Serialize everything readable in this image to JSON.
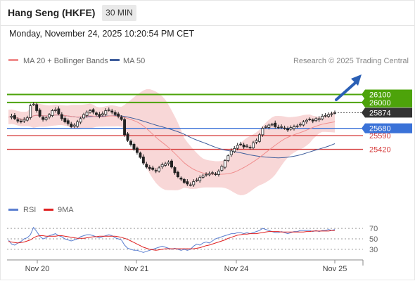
{
  "header": {
    "title": "Hang Seng (HKFE)",
    "timeframe": "30 MIN",
    "timestamp": "Monday, November 24, 2025 10:20:54 PM CET"
  },
  "legend": {
    "ma20_label": "MA 20 + Bollinger Bands",
    "ma50_label": "MA 50",
    "credit": "Research © 2025 Trading Central",
    "ma20_color": "#f08f8f",
    "ma50_color": "#3f5e9c"
  },
  "rsi_legend": {
    "rsi_label": "RSI",
    "ma_label": "9MA",
    "rsi_color": "#5b7fd0",
    "ma_color": "#e02020"
  },
  "chart_data": [
    {
      "type": "candlestick",
      "title": "Hang Seng (HKFE)",
      "ylim": [
        24850,
        26400
      ],
      "x_tick_labels": [
        "Nov 20",
        "Nov 21",
        "Nov 24",
        "Nov 25"
      ],
      "current_price": 25874,
      "levels": [
        {
          "label": "26100",
          "value": 26100,
          "kind": "resistance",
          "color": "#4da30a"
        },
        {
          "label": "26000",
          "value": 26000,
          "kind": "resistance",
          "color": "#4da30a"
        },
        {
          "label": "25874",
          "value": 25874,
          "kind": "last",
          "color": "#333333"
        },
        {
          "label": "25680",
          "value": 25680,
          "kind": "pivot",
          "color": "#3a72d8"
        },
        {
          "label": "25590",
          "value": 25590,
          "kind": "support",
          "color": "#d53a3a"
        },
        {
          "label": "25420",
          "value": 25420,
          "kind": "support",
          "color": "#d53a3a"
        }
      ],
      "close_path": [
        25820,
        25830,
        25800,
        25770,
        25760,
        25790,
        25810,
        25960,
        25980,
        25900,
        25830,
        25790,
        25810,
        25850,
        25900,
        25910,
        25860,
        25800,
        25760,
        25740,
        25700,
        25720,
        25760,
        25800,
        25850,
        25880,
        25900,
        25880,
        25850,
        25830,
        25860,
        25900,
        25910,
        25880,
        25850,
        25830,
        25790,
        25600,
        25530,
        25480,
        25420,
        25380,
        25320,
        25250,
        25200,
        25180,
        25170,
        25150,
        25190,
        25230,
        25240,
        25260,
        25200,
        25130,
        25080,
        25050,
        25010,
        24990,
        24980,
        25020,
        25040,
        25070,
        25090,
        25110,
        25120,
        25130,
        25110,
        25150,
        25210,
        25280,
        25340,
        25400,
        25430,
        25470,
        25480,
        25450,
        25460,
        25440,
        25500,
        25530,
        25600,
        25680,
        25700,
        25720,
        25730,
        25700,
        25690,
        25700,
        25680,
        25660,
        25690,
        25700,
        25710,
        25730,
        25760,
        25780,
        25790,
        25770,
        25800,
        25800,
        25830,
        25840,
        25850,
        25860,
        25874
      ]
    },
    {
      "type": "line",
      "title": "RSI",
      "ylim": [
        15,
        85
      ],
      "y_ticks": [
        30,
        50,
        70
      ],
      "series": [
        {
          "name": "RSI",
          "values": [
            48,
            40,
            38,
            42,
            45,
            50,
            52,
            58,
            72,
            64,
            55,
            50,
            52,
            56,
            58,
            60,
            56,
            54,
            50,
            48,
            46,
            48,
            50,
            54,
            56,
            58,
            58,
            56,
            54,
            52,
            54,
            56,
            58,
            56,
            52,
            50,
            48,
            38,
            32,
            30,
            28,
            28,
            26,
            24,
            26,
            28,
            30,
            32,
            34,
            36,
            34,
            32,
            30,
            32,
            30,
            28,
            30,
            28,
            30,
            36,
            40,
            38,
            42,
            44,
            42,
            46,
            50,
            52,
            54,
            56,
            58,
            60,
            60,
            62,
            62,
            60,
            62,
            60,
            62,
            64,
            66,
            70,
            68,
            66,
            64,
            62,
            62,
            64,
            62,
            60,
            62,
            64,
            64,
            66,
            66,
            66,
            66,
            64,
            66,
            64,
            66,
            66,
            68,
            66,
            68
          ]
        },
        {
          "name": "9MA",
          "values": [
            45,
            44,
            43,
            42,
            43,
            44,
            46,
            48,
            52,
            55,
            56,
            56,
            55,
            55,
            55,
            55,
            56,
            56,
            55,
            54,
            53,
            52,
            51,
            51,
            51,
            52,
            53,
            54,
            54,
            55,
            55,
            55,
            55,
            55,
            55,
            54,
            53,
            51,
            49,
            46,
            43,
            40,
            37,
            34,
            32,
            30,
            29,
            28,
            29,
            30,
            31,
            31,
            31,
            31,
            31,
            31,
            31,
            31,
            31,
            31,
            32,
            33,
            35,
            37,
            38,
            40,
            42,
            44,
            46,
            48,
            51,
            53,
            55,
            57,
            58,
            59,
            59,
            60,
            60,
            60,
            61,
            62,
            63,
            64,
            64,
            64,
            64,
            63,
            63,
            63,
            63,
            63,
            63,
            63,
            63,
            64,
            64,
            65,
            65,
            65,
            65,
            65,
            65,
            66,
            66
          ]
        }
      ]
    }
  ]
}
